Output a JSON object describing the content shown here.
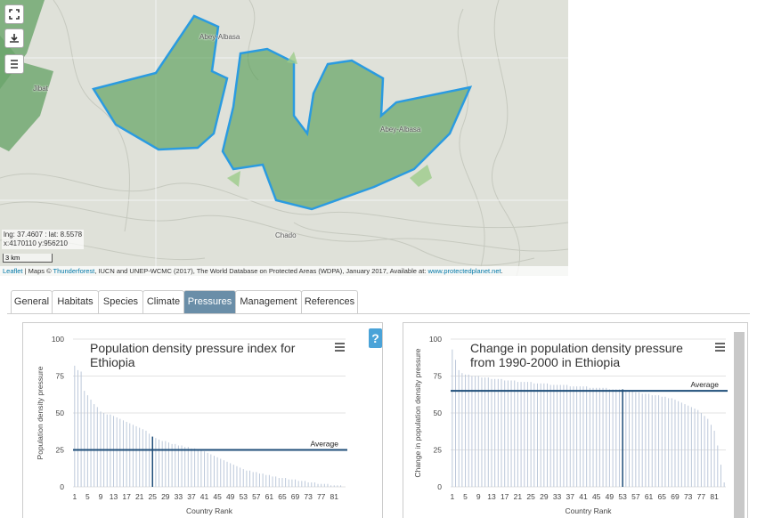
{
  "map": {
    "labels": [
      "Abey-Albasa",
      "Jibat",
      "Abey-Albasa",
      "Chado"
    ],
    "coords": [
      "lng: 37.4607 : lat: 8.5578",
      "x:4170110 y:956210"
    ],
    "scale": "3 km",
    "attribution": [
      "Leaflet",
      " | Maps © ",
      "Thunderforest",
      ", IUCN and UNEP-WCMC (2017), The World Database on Protected Areas (WDPA), January 2017, Available at: ",
      "www.protectedplanet.net",
      "."
    ]
  },
  "tabs": [
    {
      "label": "General"
    },
    {
      "label": "Habitats"
    },
    {
      "label": "Species"
    },
    {
      "label": "Climate"
    },
    {
      "label": "Pressures",
      "active": true
    },
    {
      "label": "Management"
    },
    {
      "label": "References"
    }
  ],
  "help_button": "?",
  "chart_data": [
    {
      "type": "bar",
      "title": "Population density pressure index for Ethiopia",
      "ylabel": "Population density pressure",
      "xlabel": "Country Rank",
      "x": [
        1,
        2,
        3,
        4,
        5,
        6,
        7,
        8,
        9,
        10,
        11,
        12,
        13,
        14,
        15,
        16,
        17,
        18,
        19,
        20,
        21,
        22,
        23,
        24,
        25,
        26,
        27,
        28,
        29,
        30,
        31,
        32,
        33,
        34,
        35,
        36,
        37,
        38,
        39,
        40,
        41,
        42,
        43,
        44,
        45,
        46,
        47,
        48,
        49,
        50,
        51,
        52,
        53,
        54,
        55,
        56,
        57,
        58,
        59,
        60,
        61,
        62,
        63,
        64,
        65,
        66,
        67,
        68,
        69,
        70,
        71,
        72,
        73,
        74,
        75,
        76,
        77,
        78,
        79,
        80,
        81,
        82,
        83,
        84
      ],
      "values": [
        82,
        79,
        78,
        65,
        62,
        59,
        56,
        54,
        51,
        50,
        49,
        49,
        48,
        47,
        46,
        45,
        44,
        43,
        42,
        41,
        40,
        39,
        38,
        36,
        34,
        33,
        32,
        31,
        31,
        30,
        29,
        29,
        28,
        28,
        27,
        27,
        26,
        26,
        25,
        25,
        24,
        23,
        22,
        21,
        20,
        19,
        18,
        17,
        16,
        15,
        14,
        13,
        12,
        11,
        11,
        10,
        10,
        9,
        9,
        8,
        8,
        7,
        7,
        6,
        6,
        6,
        5,
        5,
        5,
        4,
        4,
        4,
        3,
        3,
        3,
        2,
        2,
        2,
        2,
        1,
        1,
        1,
        1,
        0
      ],
      "color": "#bcc8da",
      "highlight_color": "#1f4e79",
      "highlight_x": 25,
      "average": {
        "label": "Average",
        "value": 25,
        "color": "#1f4e79"
      },
      "xlim": [
        0.5,
        84.5
      ],
      "xticks": [
        1,
        5,
        9,
        13,
        17,
        21,
        25,
        29,
        33,
        37,
        41,
        45,
        49,
        53,
        57,
        61,
        65,
        69,
        73,
        77,
        81
      ],
      "ylim": [
        0,
        100
      ],
      "yticks": [
        0,
        25,
        50,
        75,
        100
      ],
      "grid": true
    },
    {
      "type": "bar",
      "title": "Change in population density pressure from 1990-2000 in Ethiopia",
      "ylabel": "Change in population density pressure",
      "xlabel": "Country Rank",
      "x": [
        1,
        2,
        3,
        4,
        5,
        6,
        7,
        8,
        9,
        10,
        11,
        12,
        13,
        14,
        15,
        16,
        17,
        18,
        19,
        20,
        21,
        22,
        23,
        24,
        25,
        26,
        27,
        28,
        29,
        30,
        31,
        32,
        33,
        34,
        35,
        36,
        37,
        38,
        39,
        40,
        41,
        42,
        43,
        44,
        45,
        46,
        47,
        48,
        49,
        50,
        51,
        52,
        53,
        54,
        55,
        56,
        57,
        58,
        59,
        60,
        61,
        62,
        63,
        64,
        65,
        66,
        67,
        68,
        69,
        70,
        71,
        72,
        73,
        74,
        75,
        76,
        77,
        78,
        79,
        80,
        81,
        82,
        83,
        84
      ],
      "values": [
        93,
        86,
        79,
        77,
        76,
        76,
        75,
        75,
        75,
        74,
        74,
        74,
        73,
        73,
        73,
        73,
        72,
        72,
        72,
        72,
        71,
        71,
        71,
        71,
        71,
        70,
        70,
        70,
        70,
        70,
        69,
        69,
        69,
        69,
        69,
        69,
        68,
        68,
        68,
        68,
        68,
        68,
        67,
        67,
        67,
        67,
        67,
        67,
        66,
        66,
        66,
        66,
        66,
        65,
        65,
        65,
        64,
        64,
        63,
        63,
        63,
        62,
        62,
        62,
        61,
        61,
        60,
        60,
        59,
        58,
        57,
        56,
        55,
        54,
        53,
        52,
        50,
        48,
        46,
        42,
        38,
        28,
        15,
        3
      ],
      "color": "#bcc8da",
      "highlight_color": "#1f4e79",
      "highlight_x": 53,
      "average": {
        "label": "Average",
        "value": 65,
        "color": "#1f4e79"
      },
      "xlim": [
        0.5,
        84.5
      ],
      "xticks": [
        1,
        5,
        9,
        13,
        17,
        21,
        25,
        29,
        33,
        37,
        41,
        45,
        49,
        53,
        57,
        61,
        65,
        69,
        73,
        77,
        81
      ],
      "ylim": [
        0,
        100
      ],
      "yticks": [
        0,
        25,
        50,
        75,
        100
      ],
      "grid": true
    }
  ]
}
